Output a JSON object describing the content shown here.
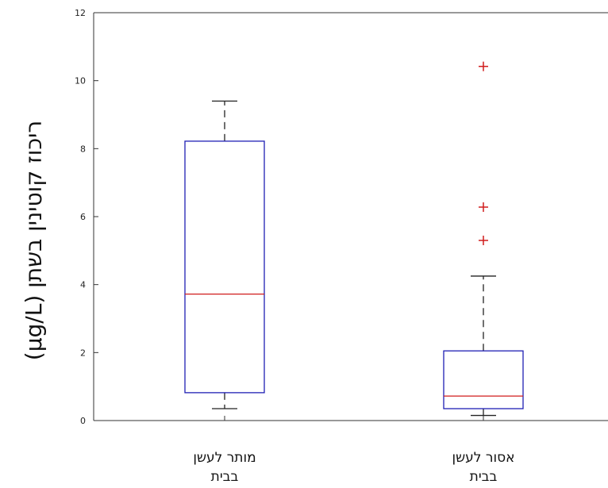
{
  "chart_data": {
    "type": "boxplot",
    "ylabel": "ריכוז קוטינין בשתן (µg/L)",
    "ylim": [
      0,
      12
    ],
    "yticks": [
      0,
      2,
      4,
      6,
      8,
      10,
      12
    ],
    "categories": [
      {
        "lines": [
          "מותר לעשן",
          "בבית"
        ]
      },
      {
        "lines": [
          "אסור לעשן",
          "בבית"
        ]
      }
    ],
    "boxes": [
      {
        "whisker_low": 0.35,
        "q1": 0.82,
        "median": 3.72,
        "q3": 8.22,
        "whisker_high": 9.4,
        "outliers": []
      },
      {
        "whisker_low": 0.15,
        "q1": 0.35,
        "median": 0.72,
        "q3": 2.05,
        "whisker_high": 4.25,
        "outliers": [
          5.3,
          6.28,
          10.42
        ]
      }
    ],
    "colors": {
      "box": "#1f1fb4",
      "median": "#d01c1c",
      "outlier": "#d01c1c",
      "axis": "#333333"
    }
  }
}
